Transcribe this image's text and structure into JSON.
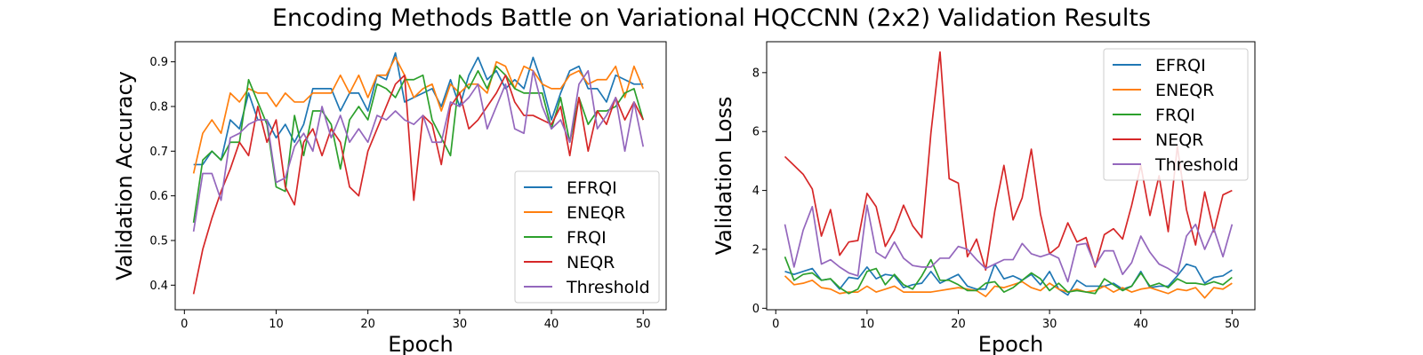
{
  "figure": {
    "title": "Encoding Methods Battle on Variational HQCCNN (2x2) Validation Results"
  },
  "colors": {
    "EFRQI": "#1f77b4",
    "ENEQR": "#ff7f0e",
    "FRQI": "#2ca02c",
    "NEQR": "#d62728",
    "Threshold": "#9467bd"
  },
  "chart_data": [
    {
      "type": "line",
      "xlabel": "Epoch",
      "ylabel": "Validation Accuracy",
      "xlim": [
        -1,
        52.5
      ],
      "ylim": [
        0.345,
        0.945
      ],
      "xticks": [
        0,
        10,
        20,
        30,
        40,
        50
      ],
      "yticks": [
        0.4,
        0.5,
        0.6,
        0.7,
        0.8,
        0.9
      ],
      "ytick_labels": [
        "0.4",
        "0.5",
        "0.6",
        "0.7",
        "0.8",
        "0.9"
      ],
      "legend": "lower-right",
      "x": [
        1,
        2,
        3,
        4,
        5,
        6,
        7,
        8,
        9,
        10,
        11,
        12,
        13,
        14,
        15,
        16,
        17,
        18,
        19,
        20,
        21,
        22,
        23,
        24,
        25,
        26,
        27,
        28,
        29,
        30,
        31,
        32,
        33,
        34,
        35,
        36,
        37,
        38,
        39,
        40,
        41,
        42,
        43,
        44,
        45,
        46,
        47,
        48,
        49,
        50
      ],
      "series": [
        {
          "name": "EFRQI",
          "values": [
            0.67,
            0.67,
            0.7,
            0.68,
            0.77,
            0.75,
            0.83,
            0.77,
            0.77,
            0.73,
            0.76,
            0.72,
            0.76,
            0.84,
            0.84,
            0.84,
            0.79,
            0.83,
            0.83,
            0.79,
            0.87,
            0.86,
            0.92,
            0.81,
            0.82,
            0.83,
            0.84,
            0.8,
            0.86,
            0.8,
            0.87,
            0.91,
            0.86,
            0.88,
            0.84,
            0.86,
            0.84,
            0.91,
            0.85,
            0.77,
            0.83,
            0.88,
            0.89,
            0.84,
            0.84,
            0.81,
            0.87,
            0.86,
            0.85,
            0.85
          ]
        },
        {
          "name": "ENEQR",
          "values": [
            0.65,
            0.74,
            0.77,
            0.74,
            0.83,
            0.81,
            0.84,
            0.83,
            0.83,
            0.8,
            0.83,
            0.81,
            0.81,
            0.83,
            0.83,
            0.83,
            0.87,
            0.83,
            0.87,
            0.82,
            0.87,
            0.87,
            0.91,
            0.87,
            0.82,
            0.84,
            0.85,
            0.79,
            0.85,
            0.83,
            0.85,
            0.85,
            0.83,
            0.9,
            0.89,
            0.84,
            0.89,
            0.88,
            0.85,
            0.84,
            0.84,
            0.87,
            0.88,
            0.85,
            0.86,
            0.86,
            0.89,
            0.82,
            0.89,
            0.84
          ]
        },
        {
          "name": "FRQI",
          "values": [
            0.54,
            0.68,
            0.7,
            0.68,
            0.72,
            0.72,
            0.86,
            0.81,
            0.76,
            0.62,
            0.61,
            0.78,
            0.69,
            0.79,
            0.79,
            0.76,
            0.66,
            0.77,
            0.8,
            0.77,
            0.85,
            0.84,
            0.82,
            0.86,
            0.86,
            0.87,
            0.77,
            0.73,
            0.69,
            0.87,
            0.84,
            0.88,
            0.84,
            0.89,
            0.87,
            0.84,
            0.83,
            0.83,
            0.83,
            0.75,
            0.82,
            0.72,
            0.82,
            0.76,
            0.79,
            0.79,
            0.8,
            0.83,
            0.84,
            0.77
          ]
        },
        {
          "name": "NEQR",
          "values": [
            0.38,
            0.48,
            0.55,
            0.61,
            0.66,
            0.72,
            0.69,
            0.8,
            0.72,
            0.77,
            0.62,
            0.58,
            0.72,
            0.75,
            0.69,
            0.75,
            0.72,
            0.62,
            0.6,
            0.7,
            0.75,
            0.8,
            0.85,
            0.87,
            0.59,
            0.78,
            0.76,
            0.67,
            0.8,
            0.83,
            0.75,
            0.77,
            0.8,
            0.83,
            0.87,
            0.81,
            0.78,
            0.78,
            0.77,
            0.76,
            0.8,
            0.69,
            0.82,
            0.7,
            0.79,
            0.76,
            0.82,
            0.77,
            0.81,
            0.77
          ]
        },
        {
          "name": "Threshold",
          "values": [
            0.52,
            0.65,
            0.65,
            0.59,
            0.73,
            0.74,
            0.76,
            0.77,
            0.77,
            0.63,
            0.64,
            0.71,
            0.74,
            0.7,
            0.8,
            0.73,
            0.78,
            0.72,
            0.75,
            0.72,
            0.78,
            0.77,
            0.79,
            0.77,
            0.76,
            0.78,
            0.72,
            0.72,
            0.81,
            0.8,
            0.82,
            0.85,
            0.75,
            0.8,
            0.85,
            0.75,
            0.74,
            0.88,
            0.8,
            0.75,
            0.77,
            0.72,
            0.85,
            0.88,
            0.75,
            0.78,
            0.82,
            0.7,
            0.81,
            0.71
          ]
        }
      ]
    },
    {
      "type": "line",
      "xlabel": "Epoch",
      "ylabel": "Validation Loss",
      "xlim": [
        -1,
        52.5
      ],
      "ylim": [
        -0.05,
        9.05
      ],
      "xticks": [
        0,
        10,
        20,
        30,
        40,
        50
      ],
      "yticks": [
        0,
        2,
        4,
        6,
        8
      ],
      "ytick_labels": [
        "0",
        "2",
        "4",
        "6",
        "8"
      ],
      "legend": "upper-right",
      "x": [
        1,
        2,
        3,
        4,
        5,
        6,
        7,
        8,
        9,
        10,
        11,
        12,
        13,
        14,
        15,
        16,
        17,
        18,
        19,
        20,
        21,
        22,
        23,
        24,
        25,
        26,
        27,
        28,
        29,
        30,
        31,
        32,
        33,
        34,
        35,
        36,
        37,
        38,
        39,
        40,
        41,
        42,
        43,
        44,
        45,
        46,
        47,
        48,
        49,
        50
      ],
      "series": [
        {
          "name": "EFRQI",
          "values": [
            1.25,
            1.15,
            1.25,
            1.35,
            0.95,
            1.0,
            0.65,
            1.05,
            1.0,
            1.4,
            1.0,
            1.15,
            1.1,
            0.7,
            0.8,
            0.85,
            1.25,
            0.85,
            1.0,
            1.15,
            0.75,
            0.65,
            0.65,
            1.5,
            1.0,
            1.1,
            0.95,
            1.15,
            0.8,
            1.25,
            0.65,
            0.45,
            0.95,
            0.75,
            0.75,
            0.75,
            0.85,
            0.65,
            0.75,
            1.25,
            0.7,
            0.75,
            0.75,
            1.1,
            1.5,
            1.4,
            0.85,
            1.05,
            1.1,
            1.3
          ]
        },
        {
          "name": "ENEQR",
          "values": [
            1.1,
            0.8,
            0.85,
            0.95,
            0.7,
            0.65,
            0.5,
            0.55,
            0.55,
            0.75,
            0.55,
            0.65,
            0.75,
            0.55,
            0.55,
            0.55,
            0.55,
            0.6,
            0.65,
            0.7,
            0.65,
            0.6,
            0.4,
            0.75,
            0.7,
            0.8,
            0.9,
            0.7,
            0.6,
            0.85,
            0.65,
            0.55,
            0.65,
            0.55,
            0.6,
            0.75,
            0.55,
            0.7,
            0.55,
            0.65,
            0.7,
            0.6,
            0.5,
            0.65,
            0.6,
            0.7,
            0.35,
            0.7,
            0.65,
            0.85
          ]
        },
        {
          "name": "FRQI",
          "values": [
            1.75,
            0.95,
            1.15,
            1.2,
            0.95,
            1.0,
            0.7,
            0.5,
            0.65,
            1.25,
            1.35,
            0.8,
            1.15,
            0.8,
            0.65,
            1.1,
            1.65,
            0.95,
            0.95,
            0.8,
            0.6,
            0.6,
            0.85,
            0.9,
            0.55,
            0.7,
            0.95,
            1.2,
            1.0,
            0.6,
            0.85,
            0.55,
            0.6,
            0.55,
            0.5,
            1.0,
            0.8,
            0.6,
            0.75,
            1.2,
            0.75,
            0.85,
            0.7,
            1.0,
            0.85,
            0.85,
            0.8,
            0.9,
            0.8,
            1.05
          ]
        },
        {
          "name": "NEQR",
          "values": [
            5.15,
            4.85,
            4.55,
            4.05,
            2.45,
            3.35,
            1.8,
            2.25,
            2.3,
            3.9,
            3.45,
            2.1,
            2.65,
            3.5,
            2.8,
            2.4,
            5.95,
            8.7,
            4.4,
            4.25,
            1.75,
            2.35,
            1.3,
            3.3,
            4.85,
            3.0,
            3.75,
            5.4,
            3.2,
            1.85,
            2.1,
            2.9,
            2.25,
            2.4,
            1.4,
            2.5,
            2.7,
            2.35,
            3.5,
            4.85,
            3.15,
            4.5,
            2.6,
            5.5,
            3.35,
            2.15,
            3.95,
            2.6,
            3.85,
            4.0
          ]
        },
        {
          "name": "Threshold",
          "values": [
            2.85,
            1.4,
            2.65,
            3.45,
            1.5,
            1.65,
            1.4,
            1.2,
            1.1,
            3.5,
            1.9,
            1.7,
            2.25,
            1.7,
            1.45,
            1.4,
            1.4,
            1.7,
            1.7,
            2.1,
            2.0,
            1.65,
            1.35,
            1.5,
            1.65,
            1.65,
            2.2,
            1.85,
            1.75,
            1.85,
            1.7,
            0.9,
            2.15,
            2.2,
            1.45,
            1.95,
            1.95,
            1.15,
            1.55,
            2.45,
            1.9,
            1.5,
            1.35,
            1.15,
            2.45,
            2.85,
            2.0,
            2.7,
            1.75,
            2.85
          ]
        }
      ]
    }
  ]
}
